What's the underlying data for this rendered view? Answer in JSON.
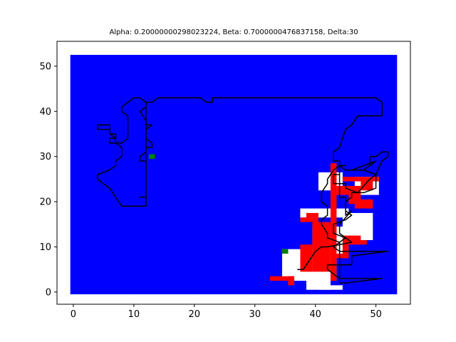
{
  "chart_data": {
    "type": "scatter",
    "title": "Alpha: 0.20000000298023224, Beta: 0.7000000476837158, Delta:30",
    "xlabel": "",
    "ylabel": "",
    "xlim": [
      -2.7,
      55.7
    ],
    "ylim": [
      -2.7,
      55.5
    ],
    "xticks": [
      0,
      10,
      20,
      30,
      40,
      50
    ],
    "yticks": [
      0,
      10,
      20,
      30,
      40,
      50
    ],
    "grid": false,
    "colors": {
      "background_field": "#0000ff",
      "open_region": "#ffffff",
      "obstacles": "#ff0000",
      "markers": "#008000",
      "path": "#000000"
    },
    "background_field": {
      "x": [
        0,
        53
      ],
      "y": [
        0,
        52
      ]
    },
    "open_region_rects": [
      [
        41,
        23,
        4,
        4
      ],
      [
        47,
        22,
        4,
        4
      ],
      [
        38,
        17,
        8,
        2
      ],
      [
        45,
        12,
        5,
        6
      ],
      [
        40,
        9,
        6,
        6
      ],
      [
        35,
        3,
        9,
        7
      ],
      [
        39,
        1,
        4,
        3
      ],
      [
        41,
        1,
        4,
        1
      ]
    ],
    "obstacle_rects": [
      [
        45,
        25,
        6,
        1
      ],
      [
        48,
        23,
        2,
        2
      ],
      [
        46,
        20,
        2,
        4
      ],
      [
        47,
        19,
        3,
        2
      ],
      [
        43,
        20,
        1,
        9
      ],
      [
        44,
        22,
        2,
        2
      ],
      [
        39,
        17,
        2,
        1
      ],
      [
        38,
        16,
        3,
        1
      ],
      [
        40,
        5,
        3,
        11
      ],
      [
        43,
        3,
        1,
        18
      ],
      [
        45,
        12,
        3,
        1
      ],
      [
        46,
        11,
        3,
        1
      ],
      [
        45,
        8,
        1,
        4
      ],
      [
        44,
        8,
        2,
        1
      ],
      [
        38,
        5,
        2,
        6
      ],
      [
        33,
        3,
        4,
        1
      ],
      [
        36,
        2,
        1,
        2
      ]
    ],
    "markers": [
      {
        "x": 13,
        "y": 30
      },
      {
        "x": 35,
        "y": 9
      }
    ],
    "paths": [
      [
        [
          8,
          19
        ],
        [
          12,
          19
        ],
        [
          12,
          29
        ],
        [
          12,
          34
        ],
        [
          12,
          36
        ],
        [
          13,
          37
        ],
        [
          12,
          37
        ],
        [
          12,
          42
        ],
        [
          13,
          42
        ],
        [
          14,
          43
        ],
        [
          20,
          43
        ],
        [
          21,
          43
        ],
        [
          22,
          42
        ],
        [
          23,
          42
        ],
        [
          23,
          43
        ],
        [
          50,
          43
        ],
        [
          51,
          42
        ],
        [
          51,
          39
        ],
        [
          49,
          39
        ],
        [
          47,
          39
        ],
        [
          46,
          37
        ],
        [
          45,
          36
        ],
        [
          44,
          32
        ],
        [
          43,
          31
        ],
        [
          43,
          29
        ],
        [
          44,
          29
        ],
        [
          44,
          28
        ],
        [
          45,
          27
        ],
        [
          48,
          27
        ],
        [
          49,
          28
        ],
        [
          49,
          30
        ],
        [
          50,
          30
        ],
        [
          51,
          31
        ],
        [
          52,
          31
        ],
        [
          52,
          30
        ],
        [
          51,
          29
        ],
        [
          50,
          26
        ],
        [
          50,
          23
        ],
        [
          48,
          22
        ],
        [
          46,
          22
        ],
        [
          46,
          21
        ],
        [
          45,
          20
        ],
        [
          45,
          18
        ],
        [
          46,
          17
        ],
        [
          45,
          16
        ],
        [
          43,
          15
        ],
        [
          43,
          13
        ],
        [
          45,
          12
        ],
        [
          44,
          11
        ],
        [
          43,
          10
        ],
        [
          44,
          9
        ],
        [
          46,
          9
        ],
        [
          52,
          9
        ],
        [
          46,
          8
        ],
        [
          46,
          6
        ],
        [
          43,
          6
        ],
        [
          42,
          6
        ],
        [
          42,
          5
        ],
        [
          43,
          4
        ],
        [
          44,
          3
        ],
        [
          51,
          3
        ],
        [
          45,
          2
        ],
        [
          44,
          2
        ],
        [
          44,
          11
        ],
        [
          42,
          12
        ],
        [
          42,
          13
        ],
        [
          41,
          15
        ],
        [
          41,
          16
        ],
        [
          42,
          17
        ],
        [
          42,
          19
        ],
        [
          41,
          20
        ],
        [
          41,
          22
        ],
        [
          42,
          24
        ],
        [
          42,
          25
        ],
        [
          43,
          27
        ],
        [
          44,
          28
        ],
        [
          45,
          27
        ],
        [
          46,
          27
        ],
        [
          48,
          28
        ],
        [
          50,
          29
        ],
        [
          48,
          27
        ],
        [
          50,
          26
        ],
        [
          49,
          25
        ],
        [
          47,
          22
        ],
        [
          45,
          23
        ],
        [
          45,
          24
        ],
        [
          43,
          24
        ],
        [
          43,
          26
        ],
        [
          44,
          26
        ],
        [
          44,
          28
        ],
        [
          45,
          28
        ],
        [
          44,
          28
        ],
        [
          44,
          21
        ],
        [
          45,
          21
        ],
        [
          45,
          17
        ],
        [
          46,
          18
        ],
        [
          44,
          15
        ],
        [
          44,
          13
        ],
        [
          46,
          11
        ],
        [
          42,
          10
        ],
        [
          41,
          10
        ],
        [
          40,
          9
        ],
        [
          38,
          5
        ],
        [
          37,
          5
        ]
      ],
      [
        [
          8,
          19
        ],
        [
          6,
          23
        ],
        [
          4,
          25
        ],
        [
          4,
          26
        ],
        [
          6,
          27
        ],
        [
          7,
          28
        ],
        [
          7,
          29
        ],
        [
          8,
          30
        ],
        [
          8,
          32
        ],
        [
          7,
          33
        ],
        [
          7,
          34
        ],
        [
          6,
          35
        ],
        [
          6,
          36
        ],
        [
          5,
          36
        ],
        [
          4,
          36
        ],
        [
          4,
          37
        ],
        [
          6,
          37
        ],
        [
          6,
          36
        ],
        [
          6,
          35
        ],
        [
          7,
          35
        ],
        [
          7,
          34
        ],
        [
          6,
          34
        ],
        [
          6,
          33
        ],
        [
          8,
          33
        ],
        [
          9,
          34
        ],
        [
          9,
          39
        ],
        [
          8,
          40
        ],
        [
          8,
          41
        ],
        [
          9,
          42
        ],
        [
          10,
          43
        ],
        [
          11,
          43
        ],
        [
          12,
          42
        ],
        [
          12,
          41
        ],
        [
          11,
          40
        ],
        [
          12,
          38
        ],
        [
          12,
          34
        ],
        [
          13,
          33
        ],
        [
          13,
          32
        ],
        [
          12,
          32
        ],
        [
          12,
          31
        ],
        [
          11,
          30
        ],
        [
          11,
          29
        ],
        [
          12,
          29
        ],
        [
          12,
          21
        ],
        [
          11,
          21
        ],
        [
          12,
          21
        ],
        [
          12,
          19
        ]
      ]
    ]
  }
}
